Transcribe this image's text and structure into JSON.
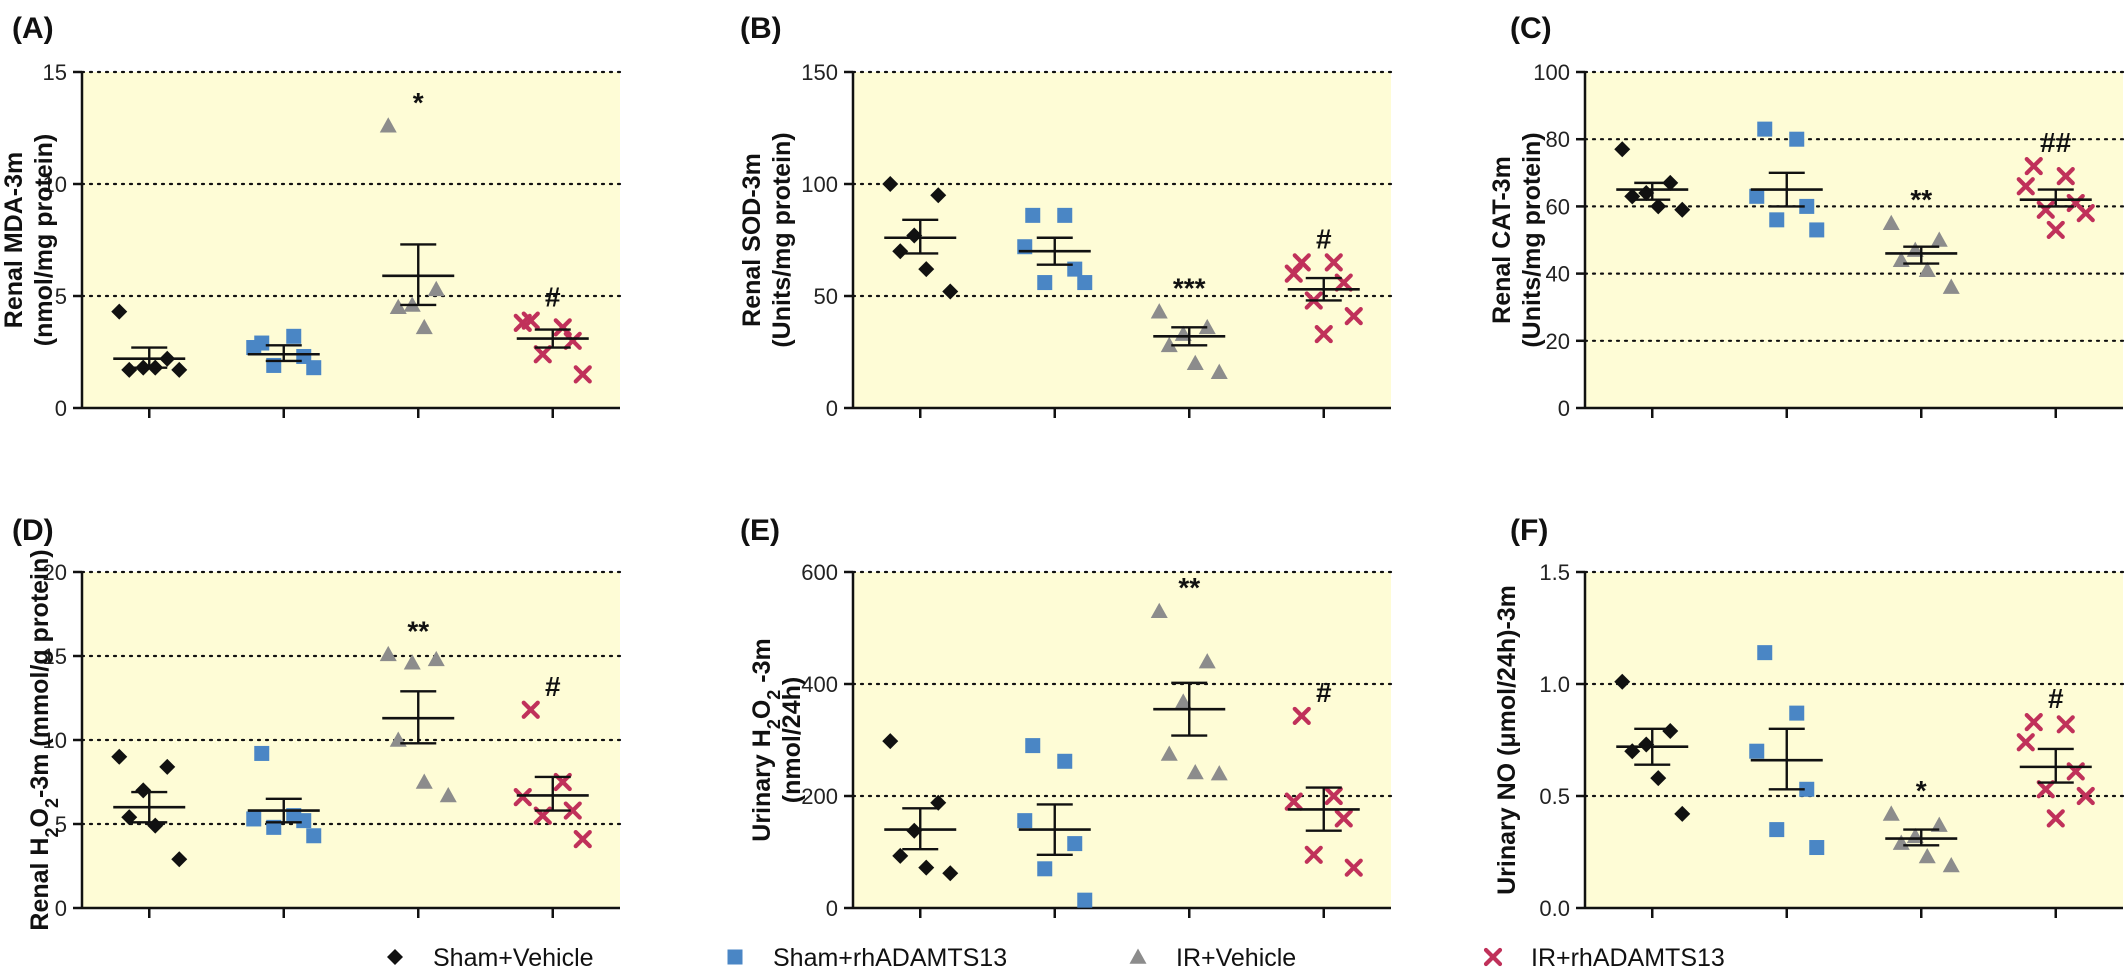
{
  "legend": [
    {
      "label": "Sham+Vehicle",
      "marker": "diamond",
      "color": "#111111"
    },
    {
      "label": "Sham+rhADAMTS13",
      "marker": "square",
      "color": "#4a86c5"
    },
    {
      "label": "IR+Vehicle",
      "marker": "triangle",
      "color": "#8c8c8c"
    },
    {
      "label": "IR+rhADAMTS13",
      "marker": "cross",
      "color": "#c0315a"
    }
  ],
  "colors": {
    "plot_background": "#fefcd6",
    "axis": "#111111",
    "grid": "#111111"
  },
  "chart_data": [
    {
      "type": "scatter",
      "panel": "(A)",
      "ylabel_lines": [
        "Renal MDA-3m",
        "(nmol/mg protein)"
      ],
      "ylim": [
        0,
        15
      ],
      "yticks": [
        0,
        5,
        10,
        15
      ],
      "grid": "dotted at 5, 10, 15",
      "groups": [
        {
          "name": "Sham+Vehicle",
          "points": [
            4.3,
            2.2,
            1.8,
            1.7,
            1.8,
            1.7
          ],
          "mean": 2.2,
          "sem_low": 1.8,
          "sem_high": 2.7,
          "annotation": ""
        },
        {
          "name": "Sham+rhADAMTS13",
          "points": [
            2.9,
            3.2,
            2.7,
            2.3,
            1.9,
            1.8
          ],
          "mean": 2.4,
          "sem_low": 2.1,
          "sem_high": 2.8,
          "annotation": ""
        },
        {
          "name": "IR+Vehicle",
          "points": [
            12.6,
            5.3,
            4.6,
            4.5,
            3.6
          ],
          "mean": 5.9,
          "sem_low": 4.6,
          "sem_high": 7.3,
          "annotation": "*"
        },
        {
          "name": "IR+rhADAMTS13",
          "points": [
            3.9,
            3.6,
            3.8,
            3.0,
            2.4,
            1.5
          ],
          "mean": 3.1,
          "sem_low": 2.7,
          "sem_high": 3.5,
          "annotation": "#"
        }
      ]
    },
    {
      "type": "scatter",
      "panel": "(B)",
      "ylabel_lines": [
        "Renal SOD-3m",
        "(Units/mg protein)"
      ],
      "ylim": [
        0,
        150
      ],
      "yticks": [
        0,
        50,
        100,
        150
      ],
      "grid": "dotted at 50, 100, 150",
      "groups": [
        {
          "name": "Sham+Vehicle",
          "points": [
            100,
            95,
            77,
            70,
            62,
            52
          ],
          "mean": 76,
          "sem_low": 69,
          "sem_high": 84,
          "annotation": ""
        },
        {
          "name": "Sham+rhADAMTS13",
          "points": [
            86,
            86,
            72,
            62,
            56,
            56
          ],
          "mean": 70,
          "sem_low": 64,
          "sem_high": 76,
          "annotation": ""
        },
        {
          "name": "IR+Vehicle",
          "points": [
            43,
            36,
            33,
            28,
            20,
            16
          ],
          "mean": 32,
          "sem_low": 28,
          "sem_high": 36,
          "annotation": "***"
        },
        {
          "name": "IR+rhADAMTS13",
          "points": [
            65,
            65,
            60,
            56,
            48,
            41,
            33
          ],
          "mean": 53,
          "sem_low": 48,
          "sem_high": 58,
          "annotation": "#"
        }
      ]
    },
    {
      "type": "scatter",
      "panel": "(C)",
      "ylabel_lines": [
        "Renal CAT-3m",
        "(Units/mg protein)"
      ],
      "ylim": [
        0,
        100
      ],
      "yticks": [
        0,
        20,
        40,
        60,
        80,
        100
      ],
      "grid": "dotted at 20, 40, 60, 80",
      "groups": [
        {
          "name": "Sham+Vehicle",
          "points": [
            77,
            67,
            64,
            63,
            60,
            59
          ],
          "mean": 65,
          "sem_low": 62,
          "sem_high": 67,
          "annotation": ""
        },
        {
          "name": "Sham+rhADAMTS13",
          "points": [
            83,
            80,
            63,
            60,
            56,
            53
          ],
          "mean": 65,
          "sem_low": 60,
          "sem_high": 70,
          "annotation": ""
        },
        {
          "name": "IR+Vehicle",
          "points": [
            55,
            50,
            47,
            44,
            41,
            36
          ],
          "mean": 46,
          "sem_low": 43,
          "sem_high": 48,
          "annotation": "**"
        },
        {
          "name": "IR+rhADAMTS13",
          "points": [
            72,
            69,
            66,
            61,
            59,
            58,
            53
          ],
          "mean": 62,
          "sem_low": 60,
          "sem_high": 65,
          "annotation": "##"
        }
      ]
    },
    {
      "type": "scatter",
      "panel": "(D)",
      "ylabel_parts": [
        {
          "t": "Renal H"
        },
        {
          "t": "2",
          "sub": true
        },
        {
          "t": "O"
        },
        {
          "t": "2",
          "sub": true
        },
        {
          "t": "-3m (mmol/g protein)"
        }
      ],
      "ylim": [
        0,
        20
      ],
      "yticks": [
        0,
        5,
        10,
        15,
        20
      ],
      "grid": "dotted at 5, 10, 15, 20",
      "groups": [
        {
          "name": "Sham+Vehicle",
          "points": [
            9.0,
            8.4,
            7.0,
            5.4,
            4.9,
            2.9
          ],
          "mean": 6.0,
          "sem_low": 5.1,
          "sem_high": 6.9,
          "annotation": ""
        },
        {
          "name": "Sham+rhADAMTS13",
          "points": [
            9.2,
            5.5,
            5.3,
            5.2,
            4.8,
            4.3
          ],
          "mean": 5.8,
          "sem_low": 5.1,
          "sem_high": 6.5,
          "annotation": ""
        },
        {
          "name": "IR+Vehicle",
          "points": [
            15.1,
            14.8,
            14.6,
            10.0,
            7.5,
            6.7
          ],
          "mean": 11.3,
          "sem_low": 9.8,
          "sem_high": 12.9,
          "annotation": "**"
        },
        {
          "name": "IR+rhADAMTS13",
          "points": [
            11.8,
            7.5,
            6.6,
            5.8,
            5.5,
            4.1
          ],
          "mean": 6.7,
          "sem_low": 5.8,
          "sem_high": 7.8,
          "annotation": "#"
        }
      ]
    },
    {
      "type": "scatter",
      "panel": "(E)",
      "ylabel_parts": [
        {
          "t": "Urinary H"
        },
        {
          "t": "2",
          "sub": true
        },
        {
          "t": "O"
        },
        {
          "t": "2",
          "sub": true
        },
        {
          "t": " -3m"
        }
      ],
      "ylabel_line2": "(nmol/24h)",
      "ylim": [
        0,
        600
      ],
      "yticks": [
        0,
        200,
        400,
        600
      ],
      "grid": "dotted at 200, 400, 600",
      "groups": [
        {
          "name": "Sham+Vehicle",
          "points": [
            298,
            188,
            138,
            93,
            72,
            62
          ],
          "mean": 140,
          "sem_low": 105,
          "sem_high": 178,
          "annotation": ""
        },
        {
          "name": "Sham+rhADAMTS13",
          "points": [
            290,
            262,
            156,
            115,
            70,
            14
          ],
          "mean": 140,
          "sem_low": 95,
          "sem_high": 185,
          "annotation": ""
        },
        {
          "name": "IR+Vehicle",
          "points": [
            530,
            440,
            368,
            275,
            242,
            240
          ],
          "mean": 355,
          "sem_low": 308,
          "sem_high": 402,
          "annotation": "**"
        },
        {
          "name": "IR+rhADAMTS13",
          "points": [
            343,
            200,
            190,
            160,
            95,
            72
          ],
          "mean": 176,
          "sem_low": 138,
          "sem_high": 215,
          "annotation": "#"
        }
      ]
    },
    {
      "type": "scatter",
      "panel": "(F)",
      "ylabel_lines": [
        "Urinary NO (μmol/24h)-3m"
      ],
      "ylim": [
        0,
        1.5
      ],
      "yticks": [
        "0.0",
        "0.5",
        "1.0",
        "1.5"
      ],
      "grid": "dotted at 0.5, 1.0, 1.5",
      "groups": [
        {
          "name": "Sham+Vehicle",
          "points": [
            1.01,
            0.79,
            0.73,
            0.7,
            0.58,
            0.42
          ],
          "mean": 0.72,
          "sem_low": 0.64,
          "sem_high": 0.8,
          "annotation": ""
        },
        {
          "name": "Sham+rhADAMTS13",
          "points": [
            1.14,
            0.87,
            0.7,
            0.53,
            0.35,
            0.27
          ],
          "mean": 0.66,
          "sem_low": 0.53,
          "sem_high": 0.8,
          "annotation": ""
        },
        {
          "name": "IR+Vehicle",
          "points": [
            0.42,
            0.37,
            0.32,
            0.29,
            0.23,
            0.19
          ],
          "mean": 0.31,
          "sem_low": 0.28,
          "sem_high": 0.35,
          "annotation": "*"
        },
        {
          "name": "IR+rhADAMTS13",
          "points": [
            0.83,
            0.82,
            0.74,
            0.61,
            0.53,
            0.5,
            0.4
          ],
          "mean": 0.63,
          "sem_low": 0.56,
          "sem_high": 0.71,
          "annotation": "#"
        }
      ]
    }
  ]
}
